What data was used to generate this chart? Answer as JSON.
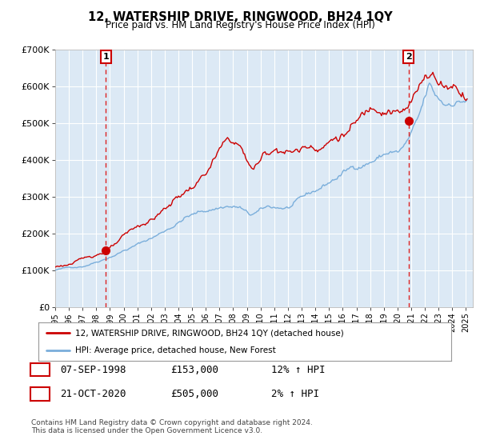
{
  "title": "12, WATERSHIP DRIVE, RINGWOOD, BH24 1QY",
  "subtitle": "Price paid vs. HM Land Registry's House Price Index (HPI)",
  "xlim_start": 1995.0,
  "xlim_end": 2025.5,
  "ylim_min": 0,
  "ylim_max": 700000,
  "yticks": [
    0,
    100000,
    200000,
    300000,
    400000,
    500000,
    600000,
    700000
  ],
  "ytick_labels": [
    "£0",
    "£100K",
    "£200K",
    "£300K",
    "£400K",
    "£500K",
    "£600K",
    "£700K"
  ],
  "sale1_date_x": 1998.69,
  "sale1_price": 153000,
  "sale2_date_x": 2020.8,
  "sale2_price": 505000,
  "sale1_label": "1",
  "sale2_label": "2",
  "red_line_color": "#cc0000",
  "blue_line_color": "#7aaedb",
  "dashed_vline_color": "#dd2222",
  "marker_color": "#cc0000",
  "bg_color": "#dce9f5",
  "grid_color": "#ffffff",
  "legend1_text": "12, WATERSHIP DRIVE, RINGWOOD, BH24 1QY (detached house)",
  "legend2_text": "HPI: Average price, detached house, New Forest",
  "table_row1": [
    "1",
    "07-SEP-1998",
    "£153,000",
    "12% ↑ HPI"
  ],
  "table_row2": [
    "2",
    "21-OCT-2020",
    "£505,000",
    "2% ↑ HPI"
  ],
  "footer": "Contains HM Land Registry data © Crown copyright and database right 2024.\nThis data is licensed under the Open Government Licence v3.0."
}
